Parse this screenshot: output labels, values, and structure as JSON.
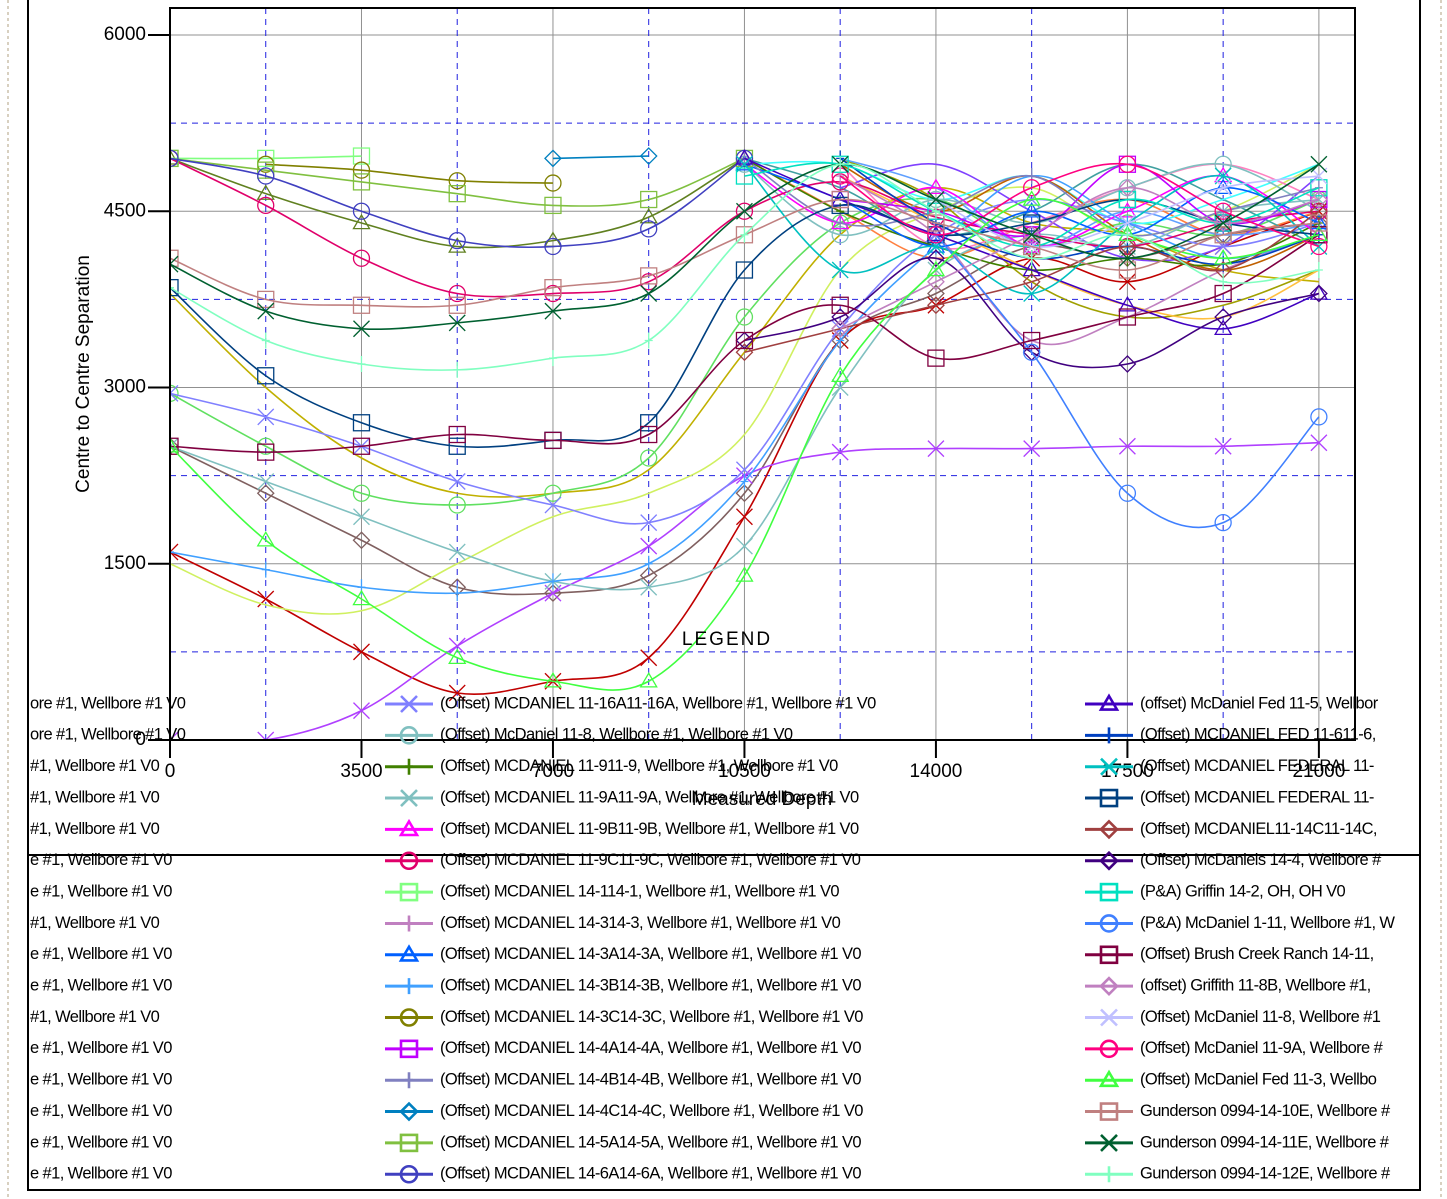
{
  "chart_data": {
    "type": "line",
    "y_label": "Centre to Centre Separation",
    "x_label": "Measured Depth",
    "legend_title": "LEGEND",
    "xlim": [
      0,
      21660
    ],
    "ylim": [
      0,
      6230
    ],
    "xticks": [
      0,
      3500,
      7000,
      10500,
      14000,
      17500,
      21000
    ],
    "yticks": [
      0,
      1500,
      3000,
      4500,
      6000
    ],
    "x_minor_grid": [
      1750,
      5250,
      8750,
      12250,
      15750,
      19250
    ],
    "y_minor_grid": [
      750,
      2250,
      3750,
      5250
    ],
    "grid": true,
    "x": [
      0,
      1750,
      3500,
      5250,
      7000,
      8750,
      10500,
      12250,
      14000,
      15750,
      17500,
      19250,
      21000
    ],
    "series": [
      {
        "name": "ore #1, Wellbore #1 V0",
        "color": "#608020",
        "marker": "triangle",
        "values": [
          4950,
          4650,
          4400,
          4200,
          4250,
          4450,
          4950,
          null,
          null,
          null,
          null,
          null,
          null
        ]
      },
      {
        "name": "ore #1, Wellbore #1 V0",
        "color": "#c0b000",
        "marker": "none",
        "values": [
          3800,
          3000,
          2400,
          2100,
          2100,
          2300,
          3300,
          4300,
          4700,
          4400,
          4300,
          4000,
          3900
        ]
      },
      {
        "name": "#1, Wellbore #1 V0",
        "color": "#60e060",
        "marker": "circle",
        "values": [
          2950,
          2500,
          2100,
          2000,
          2100,
          2400,
          3600,
          4400,
          4600,
          4200,
          4400,
          4300,
          4600
        ]
      },
      {
        "name": "#1, Wellbore #1 V0",
        "color": "#806060",
        "marker": "diamond",
        "values": [
          2500,
          2100,
          1700,
          1300,
          1250,
          1400,
          2100,
          3400,
          3800,
          4200,
          4100,
          4300,
          4400
        ]
      },
      {
        "name": "#1, Wellbore #1 V0",
        "color": "#c00000",
        "marker": "x",
        "values": [
          1600,
          1200,
          750,
          400,
          500,
          700,
          1900,
          3400,
          3700,
          4100,
          3900,
          4200,
          4500
        ]
      },
      {
        "name": "e #1, Wellbore #1 V0",
        "color": "#d0f060",
        "marker": "none",
        "values": [
          1500,
          1150,
          1100,
          1500,
          1900,
          2100,
          2600,
          4000,
          4500,
          4700,
          4300,
          4500,
          4900
        ]
      },
      {
        "name": "e #1, Wellbore #1 V0",
        "color": "#b040ff",
        "marker": "x",
        "values": [
          0,
          0,
          250,
          800,
          1250,
          1650,
          2250,
          2450,
          2480,
          2480,
          2500,
          2500,
          2530
        ]
      },
      {
        "name": "#1, Wellbore #1 V0",
        "color": "#ff8040",
        "marker": "none",
        "values": [
          null,
          null,
          null,
          null,
          null,
          null,
          4950,
          4500,
          4100,
          4400,
          4600,
          4300,
          4500
        ]
      },
      {
        "name": "e #1, Wellbore #1 V0",
        "color": "#40a0a0",
        "marker": "none",
        "values": [
          null,
          null,
          null,
          null,
          null,
          null,
          4950,
          4700,
          4300,
          4500,
          4900,
          4600,
          4200
        ]
      },
      {
        "name": "e #1, Wellbore #1 V0",
        "color": "#a0a000",
        "marker": "none",
        "values": [
          null,
          null,
          null,
          null,
          null,
          null,
          null,
          4950,
          4600,
          3900,
          3600,
          3700,
          4000
        ]
      },
      {
        "name": "#1, Wellbore #1 V0",
        "color": "#ff80c0",
        "marker": "none",
        "values": [
          null,
          null,
          null,
          null,
          null,
          null,
          null,
          4900,
          4200,
          4400,
          4700,
          4900,
          4600
        ]
      },
      {
        "name": "e #1, Wellbore #1 V0",
        "color": "#8040ff",
        "marker": "none",
        "values": [
          null,
          null,
          null,
          null,
          null,
          null,
          null,
          4700,
          4900,
          4500,
          4100,
          4200,
          4800
        ]
      },
      {
        "name": "e #1, Wellbore #1 V0",
        "color": "#40ffff",
        "marker": "none",
        "values": [
          null,
          null,
          null,
          null,
          null,
          null,
          4900,
          4900,
          4600,
          4800,
          4400,
          4600,
          4900
        ]
      },
      {
        "name": "e #1, Wellbore #1 V0",
        "color": "#ffc040",
        "marker": "none",
        "values": [
          null,
          null,
          null,
          null,
          null,
          null,
          null,
          4800,
          4400,
          4000,
          3700,
          3600,
          4000
        ]
      },
      {
        "name": "e #1, Wellbore #1 V0",
        "color": "#60a0ff",
        "marker": "none",
        "values": [
          null,
          null,
          null,
          null,
          null,
          null,
          null,
          4950,
          4700,
          4200,
          4500,
          4300,
          4400
        ]
      },
      {
        "name": "e #1, Wellbore #1 V0",
        "color": "#c06000",
        "marker": "none",
        "values": [
          null,
          null,
          null,
          null,
          null,
          null,
          null,
          4900,
          4500,
          4800,
          4300,
          4000,
          4300
        ]
      },
      {
        "name": "(Offset) MCDANIEL 11-16A11-16A, Wellbore #1, Wellbore #1 V0",
        "color": "#8080ff",
        "marker": "x",
        "values": [
          2950,
          2750,
          2500,
          2200,
          2000,
          1850,
          2300,
          3500,
          4300,
          4600,
          4400,
          4200,
          4400
        ]
      },
      {
        "name": "(Offset) McDaniel 11-8, Wellbore #1, Wellbore #1 V0",
        "color": "#80c0c0",
        "marker": "circle",
        "values": [
          null,
          null,
          null,
          null,
          null,
          null,
          4900,
          4300,
          4600,
          4400,
          4700,
          4900,
          4500
        ]
      },
      {
        "name": "(Offset) MCDANIEL 11-911-9, Wellbore #1, Wellbore #1 V0",
        "color": "#408000",
        "marker": "plus",
        "values": [
          null,
          null,
          null,
          null,
          null,
          null,
          4950,
          4500,
          4200,
          4000,
          4100,
          4050,
          4400
        ]
      },
      {
        "name": "(Offset) MCDANIEL 11-9A11-9A, Wellbore #1, Wellbore #1 V0",
        "color": "#80c0c0",
        "marker": "x",
        "values": [
          2500,
          2200,
          1900,
          1600,
          1350,
          1300,
          1650,
          3000,
          4000,
          4300,
          4200,
          4500,
          4600
        ]
      },
      {
        "name": "(Offset) MCDANIEL 11-9B11-9B, Wellbore #1, Wellbore #1 V0",
        "color": "#ff00ff",
        "marker": "triangle",
        "values": [
          null,
          null,
          null,
          null,
          null,
          null,
          4900,
          4400,
          4700,
          4200,
          4500,
          4800,
          4300
        ]
      },
      {
        "name": "(Offset) MCDANIEL 11-9C11-9C, Wellbore #1, Wellbore #1 V0",
        "color": "#e0006a",
        "marker": "circle",
        "values": [
          4950,
          4550,
          4100,
          3800,
          3800,
          3900,
          4500,
          4750,
          4450,
          4300,
          4200,
          4400,
          4500
        ]
      },
      {
        "name": "(Offset) MCDANIEL 14-114-1, Wellbore #1, Wellbore #1 V0",
        "color": "#80ff80",
        "marker": "square",
        "values": [
          4950,
          4950,
          4970,
          null,
          null,
          null,
          null,
          null,
          null,
          null,
          null,
          null,
          null
        ]
      },
      {
        "name": "(Offset) MCDANIEL 14-314-3, Wellbore #1, Wellbore #1 V0",
        "color": "#c080c0",
        "marker": "plus",
        "values": [
          null,
          null,
          null,
          null,
          null,
          null,
          null,
          4800,
          4300,
          3400,
          3600,
          4000,
          4300
        ]
      },
      {
        "name": "(Offset) MCDANIEL 14-3A14-3A, Wellbore #1, Wellbore #1 V0",
        "color": "#0060ff",
        "marker": "triangle",
        "values": [
          null,
          null,
          null,
          null,
          null,
          null,
          4900,
          4600,
          4200,
          4500,
          4300,
          4700,
          4400
        ]
      },
      {
        "name": "(Offset) MCDANIEL 14-3B14-3B, Wellbore #1, Wellbore #1 V0",
        "color": "#40a0ff",
        "marker": "plus",
        "values": [
          1600,
          1450,
          1300,
          1250,
          1350,
          1500,
          2200,
          3400,
          4200,
          4800,
          4400,
          4100,
          4300
        ]
      },
      {
        "name": "(Offset) MCDANIEL 14-3C14-3C, Wellbore #1, Wellbore #1 V0",
        "color": "#808000",
        "marker": "circle",
        "values": [
          null,
          4900,
          4850,
          4760,
          4740,
          null,
          null,
          null,
          null,
          null,
          null,
          null,
          null
        ]
      },
      {
        "name": "(Offset) MCDANIEL 14-4A14-4A, Wellbore #1, Wellbore #1 V0",
        "color": "#c000ff",
        "marker": "square",
        "values": [
          null,
          null,
          null,
          null,
          null,
          null,
          null,
          4600,
          4500,
          4300,
          4900,
          4400,
          4600
        ]
      },
      {
        "name": "(Offset) MCDANIEL 14-4B14-4B, Wellbore #1, Wellbore #1 V0",
        "color": "#8080c0",
        "marker": "plus",
        "values": [
          null,
          null,
          null,
          null,
          null,
          null,
          4950,
          4400,
          4500,
          4800,
          4300,
          4500,
          4700
        ]
      },
      {
        "name": "(Offset) MCDANIEL 14-4C14-4C, Wellbore #1, Wellbore #1 V0",
        "color": "#0080c0",
        "marker": "diamond",
        "values": [
          null,
          null,
          null,
          null,
          4950,
          4970,
          null,
          null,
          null,
          null,
          null,
          null,
          null
        ]
      },
      {
        "name": "(Offset) MCDANIEL 14-5A14-5A, Wellbore #1, Wellbore #1 V0",
        "color": "#80c040",
        "marker": "square",
        "values": [
          4950,
          4850,
          4750,
          4650,
          4550,
          4600,
          4950,
          null,
          null,
          null,
          null,
          null,
          null
        ]
      },
      {
        "name": "(Offset) MCDANIEL 14-6A14-6A, Wellbore #1, Wellbore #1 V0",
        "color": "#4040c0",
        "marker": "circle",
        "values": [
          4950,
          4800,
          4500,
          4250,
          4200,
          4350,
          4950,
          null,
          null,
          null,
          null,
          null,
          null
        ]
      },
      {
        "name": "(offset) McDaniel Fed 11-5, Wellbor",
        "color": "#4000c0",
        "marker": "triangle",
        "values": [
          null,
          null,
          null,
          null,
          null,
          null,
          4950,
          4600,
          4300,
          4000,
          3700,
          3500,
          3800
        ]
      },
      {
        "name": "(Offset) MCDANIEL FED 11-611-6,",
        "color": "#0040c0",
        "marker": "plus",
        "values": [
          null,
          null,
          null,
          null,
          null,
          null,
          null,
          4950,
          4400,
          4100,
          4200,
          4050,
          4300
        ]
      },
      {
        "name": "(Offset) MCDANIEL FEDERAL 11-",
        "color": "#00c0c0",
        "marker": "x",
        "values": [
          null,
          null,
          null,
          null,
          null,
          null,
          4900,
          4000,
          4200,
          3800,
          4400,
          4800,
          4200
        ]
      },
      {
        "name": "(Offset) MCDANIEL FEDERAL 11-",
        "color": "#004080",
        "marker": "square",
        "values": [
          3850,
          3100,
          2700,
          2500,
          2550,
          2700,
          4000,
          4550,
          4300,
          4400,
          4600,
          4400,
          4300
        ]
      },
      {
        "name": "(Offset) MCDANIEL11-14C11-14C,",
        "color": "#a04040",
        "marker": "diamond",
        "values": [
          null,
          null,
          null,
          null,
          null,
          null,
          3300,
          3500,
          3700,
          3900,
          4200,
          4000,
          4500
        ]
      },
      {
        "name": "(Offset) McDaniels 14-4, Wellbore #",
        "color": "#400080",
        "marker": "diamond",
        "values": [
          null,
          null,
          null,
          null,
          null,
          null,
          3400,
          3600,
          4100,
          3300,
          3200,
          3600,
          3800
        ]
      },
      {
        "name": "(P&A) Griffin 14-2, OH, OH V0",
        "color": "#00e0c0",
        "marker": "square",
        "values": [
          null,
          null,
          null,
          null,
          null,
          null,
          4800,
          4900,
          4500,
          4200,
          4600,
          4400,
          4700
        ]
      },
      {
        "name": "(P&A) McDaniel 1-11, Wellbore #1, W",
        "color": "#4080ff",
        "marker": "circle",
        "values": [
          null,
          null,
          null,
          null,
          null,
          null,
          null,
          null,
          4300,
          3300,
          2100,
          1850,
          2750
        ]
      },
      {
        "name": "(Offset) Brush Creek Ranch 14-11,",
        "color": "#800040",
        "marker": "square",
        "values": [
          2500,
          2450,
          2500,
          2600,
          2550,
          2600,
          3400,
          3700,
          3250,
          3400,
          3600,
          3800,
          4300
        ]
      },
      {
        "name": "(offset) Griffith 11-8B, Wellbore #1,",
        "color": "#c080c0",
        "marker": "diamond",
        "values": [
          null,
          null,
          null,
          null,
          null,
          null,
          null,
          3500,
          3900,
          4300,
          4700,
          4400,
          4600
        ]
      },
      {
        "name": "(Offset) McDaniel 11-8, Wellbore #1",
        "color": "#c0c0ff",
        "marker": "x",
        "values": [
          null,
          null,
          null,
          null,
          null,
          null,
          null,
          null,
          4600,
          4200,
          4400,
          4700,
          4800
        ]
      },
      {
        "name": "(Offset) McDaniel 11-9A, Wellbore #",
        "color": "#ff0080",
        "marker": "circle",
        "values": [
          null,
          null,
          null,
          null,
          null,
          null,
          null,
          4800,
          4300,
          4700,
          4900,
          4500,
          4200
        ]
      },
      {
        "name": "(Offset) McDaniel Fed 11-3, Wellbo",
        "color": "#40ff40",
        "marker": "triangle",
        "values": [
          2500,
          1700,
          1200,
          700,
          500,
          500,
          1400,
          3100,
          4000,
          4600,
          4300,
          4100,
          4300
        ]
      },
      {
        "name": "Gunderson 0994-14-10E, Wellbore #",
        "color": "#c08080",
        "marker": "square",
        "values": [
          4100,
          3750,
          3700,
          3700,
          3850,
          3950,
          4300,
          4600,
          4400,
          4200,
          4000,
          4300,
          4400
        ]
      },
      {
        "name": "Gunderson 0994-14-11E, Wellbore #",
        "color": "#006030",
        "marker": "x",
        "values": [
          4050,
          3650,
          3500,
          3550,
          3650,
          3800,
          4500,
          4900,
          4600,
          4300,
          4100,
          4400,
          4900
        ]
      },
      {
        "name": "Gunderson 0994-14-12E, Wellbore #",
        "color": "#80ffc0",
        "marker": "plus",
        "values": [
          3850,
          3400,
          3200,
          3150,
          3250,
          3400,
          4300,
          4900,
          4500,
          4100,
          4300,
          3900,
          4000
        ]
      }
    ]
  }
}
